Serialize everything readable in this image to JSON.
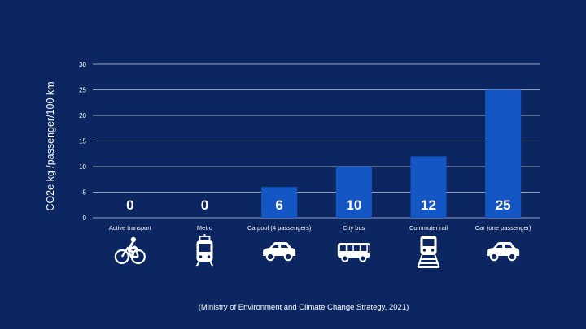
{
  "chart_data": {
    "type": "bar",
    "title": "",
    "xlabel": "",
    "ylabel": "CO2e kg /passenger/100 km",
    "ylim": [
      0,
      30
    ],
    "yticks": [
      0,
      5,
      10,
      15,
      20,
      25,
      30
    ],
    "grid": true,
    "categories": [
      "Active transport",
      "Metro",
      "Carpool (4 passengers)",
      "City bus",
      "Commuter rail",
      "Car (one passenger)"
    ],
    "values": [
      0,
      0,
      6,
      10,
      12,
      25
    ],
    "data_labels": [
      "0",
      "0",
      "6",
      "10",
      "12",
      "25"
    ],
    "icons": [
      "bicycle-icon",
      "metro-icon",
      "car-icon",
      "bus-icon",
      "train-icon",
      "car-icon"
    ],
    "bar_color": "#1457c4",
    "grid_color": "#c8d0e0",
    "source": "(Ministry of Environment and Climate Change Strategy, 2021)"
  },
  "colors": {
    "background": "#0b2660",
    "text": "#ffffff"
  }
}
